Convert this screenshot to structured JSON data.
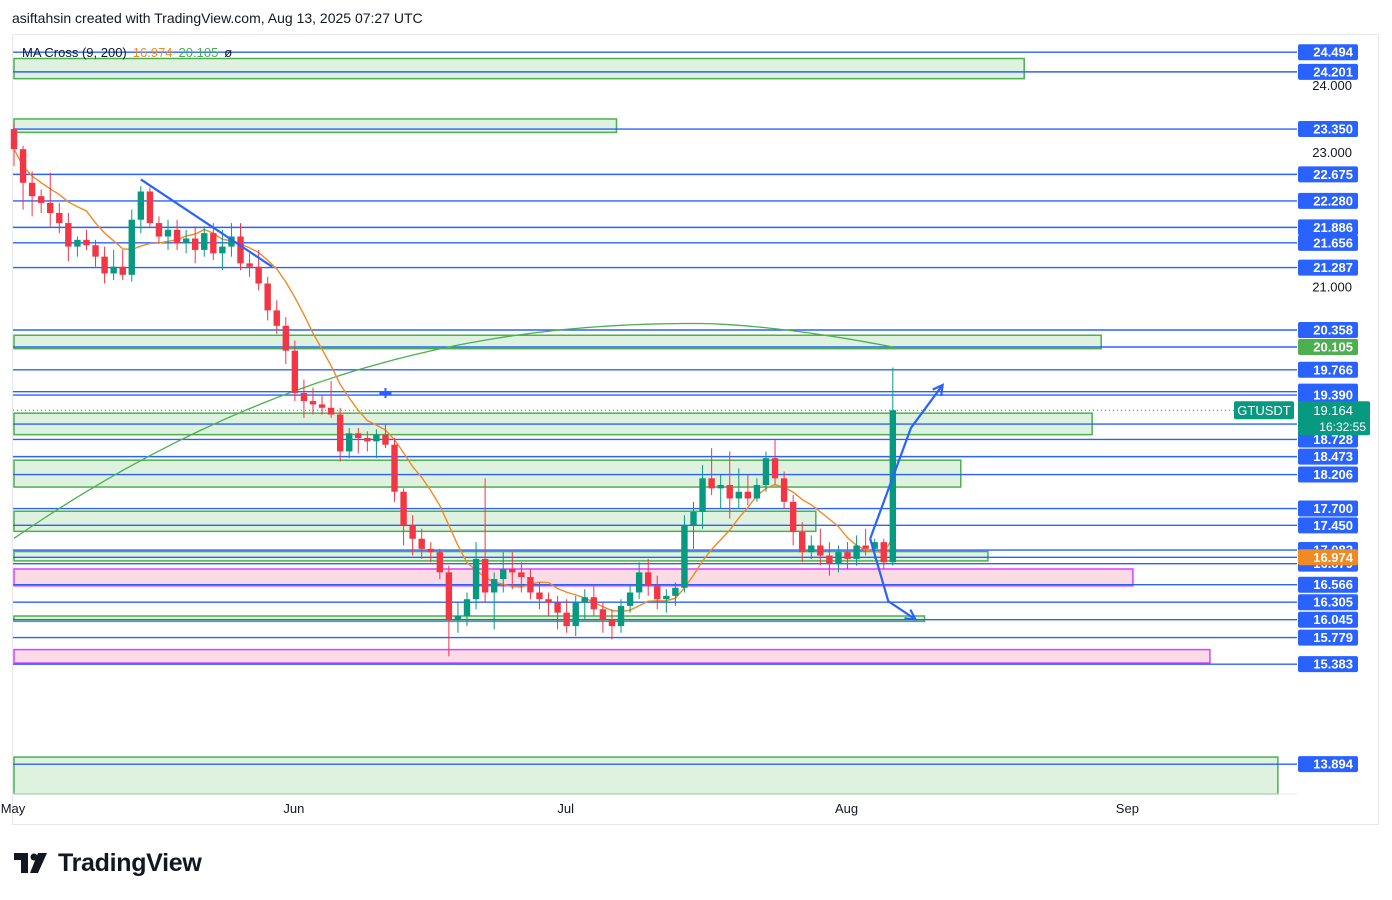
{
  "header": {
    "title": "asiftahsin created with TradingView.com, Aug 13, 2025 07:27 UTC"
  },
  "legend": {
    "label": "MA Cross (9, 200)",
    "ma9": "16.974",
    "ma200": "20.105",
    "symbol": "ø"
  },
  "brand": {
    "name": "TradingView"
  },
  "colors": {
    "up": "#089981",
    "down": "#f23645",
    "level": "#2962ff",
    "zone_green": "#4caf50",
    "zone_pink": "#e040fb",
    "ma9": "#f08a24",
    "ma200": "#4caf50",
    "arrow": "#2962ff"
  },
  "chart_data": {
    "type": "candlestick",
    "symbol": "GTUSDT",
    "last_price": "19.164",
    "countdown": "16:32:55",
    "ylim": [
      13.45,
      24.75
    ],
    "x_ticks": [
      {
        "label": "May",
        "day": 0
      },
      {
        "label": "Jun",
        "day": 31
      },
      {
        "label": "Jul",
        "day": 61
      },
      {
        "label": "Aug",
        "day": 92
      },
      {
        "label": "Sep",
        "day": 123
      }
    ],
    "y_ticks": [
      "24.000",
      "23.000",
      "21.000"
    ],
    "price_levels": [
      24.494,
      24.201,
      23.35,
      22.675,
      22.28,
      21.886,
      21.656,
      21.287,
      20.358,
      20.105,
      19.766,
      19.44,
      19.39,
      18.958,
      18.728,
      18.473,
      18.206,
      17.7,
      17.45,
      17.082,
      16.974,
      16.879,
      16.566,
      16.305,
      16.045,
      15.779,
      15.383,
      13.894
    ],
    "level_labels": [
      {
        "value": 24.494,
        "label": "24.494"
      },
      {
        "value": 24.201,
        "label": "24.201"
      },
      {
        "value": 23.35,
        "label": "23.350"
      },
      {
        "value": 22.675,
        "label": "22.675"
      },
      {
        "value": 22.28,
        "label": "22.280"
      },
      {
        "value": 21.886,
        "label": "21.886"
      },
      {
        "value": 21.656,
        "label": "21.656"
      },
      {
        "value": 21.287,
        "label": "21.287"
      },
      {
        "value": 20.358,
        "label": "20.358"
      },
      {
        "value": 19.766,
        "label": "19.766"
      },
      {
        "value": 19.44,
        "label": "19.440"
      },
      {
        "value": 19.39,
        "label": "19.390"
      },
      {
        "value": 18.958,
        "label": "18.958"
      },
      {
        "value": 18.728,
        "label": "18.728"
      },
      {
        "value": 18.473,
        "label": "18.473"
      },
      {
        "value": 18.206,
        "label": "18.206"
      },
      {
        "value": 17.7,
        "label": "17.700"
      },
      {
        "value": 17.45,
        "label": "17.450"
      },
      {
        "value": 17.082,
        "label": "17.082"
      },
      {
        "value": 16.879,
        "label": "16.879"
      },
      {
        "value": 16.566,
        "label": "16.566"
      },
      {
        "value": 16.305,
        "label": "16.305"
      },
      {
        "value": 16.045,
        "label": "16.045"
      },
      {
        "value": 15.779,
        "label": "15.779"
      },
      {
        "value": 15.383,
        "label": "15.383"
      },
      {
        "value": 13.894,
        "label": "13.894"
      }
    ],
    "badges": [
      {
        "value": 20.105,
        "label": "20.105",
        "color": "#4caf50"
      },
      {
        "value": 16.974,
        "label": "16.974",
        "color": "#f08a24"
      }
    ],
    "zones": [
      {
        "from_day": 0,
        "to_day": 111.5,
        "low": 24.1,
        "high": 24.4,
        "color": "green"
      },
      {
        "from_day": 0,
        "to_day": 66.5,
        "low": 23.3,
        "high": 23.5,
        "color": "green"
      },
      {
        "from_day": 0,
        "to_day": 120.0,
        "low": 20.08,
        "high": 20.28,
        "color": "green"
      },
      {
        "from_day": 0,
        "to_day": 119.0,
        "low": 18.8,
        "high": 19.12,
        "color": "green"
      },
      {
        "from_day": 0,
        "to_day": 104.5,
        "low": 18.02,
        "high": 18.42,
        "color": "green"
      },
      {
        "from_day": 0,
        "to_day": 88.5,
        "low": 17.36,
        "high": 17.66,
        "color": "green"
      },
      {
        "from_day": 0,
        "to_day": 107.5,
        "low": 16.92,
        "high": 17.06,
        "color": "green"
      },
      {
        "from_day": 67.5,
        "to_day": 123.5,
        "low": 16.55,
        "high": 16.8,
        "color": "pink"
      },
      {
        "from_day": 72.5,
        "to_day": 100.5,
        "low": 16.02,
        "high": 16.1,
        "color": "green"
      },
      {
        "from_day": 0,
        "to_day": 132.0,
        "low": 15.4,
        "high": 15.6,
        "color": "pink"
      },
      {
        "from_day": 0,
        "to_day": 139.5,
        "low": 13.45,
        "high": 14.0,
        "color": "green"
      }
    ],
    "drawings": [
      {
        "type": "trendline",
        "points": [
          [
            14,
            22.6
          ],
          [
            28.5,
            21.3
          ]
        ]
      },
      {
        "type": "arrow",
        "points": [
          [
            94.5,
            17.25
          ],
          [
            99,
            18.9
          ],
          [
            102.5,
            19.54
          ]
        ]
      },
      {
        "type": "arrow",
        "points": [
          [
            94.5,
            17.25
          ],
          [
            96.5,
            16.32
          ],
          [
            99.5,
            16.05
          ]
        ]
      }
    ],
    "ohlc": [
      [
        23.35,
        23.42,
        22.8,
        23.05
      ],
      [
        23.05,
        23.1,
        22.15,
        22.55
      ],
      [
        22.55,
        22.72,
        22.05,
        22.35
      ],
      [
        22.35,
        22.45,
        22.1,
        22.25
      ],
      [
        22.25,
        22.7,
        21.9,
        22.1
      ],
      [
        22.1,
        22.25,
        21.8,
        21.95
      ],
      [
        21.95,
        22.1,
        21.38,
        21.6
      ],
      [
        21.6,
        21.75,
        21.45,
        21.7
      ],
      [
        21.7,
        21.85,
        21.55,
        21.62
      ],
      [
        21.62,
        21.7,
        21.3,
        21.45
      ],
      [
        21.45,
        21.6,
        21.05,
        21.2
      ],
      [
        21.2,
        21.55,
        21.1,
        21.3
      ],
      [
        21.3,
        21.55,
        21.1,
        21.18
      ],
      [
        21.18,
        22.15,
        21.08,
        22.0
      ],
      [
        22.0,
        22.5,
        21.8,
        22.42
      ],
      [
        22.42,
        22.48,
        21.9,
        21.95
      ],
      [
        21.95,
        22.05,
        21.65,
        21.75
      ],
      [
        21.75,
        22.0,
        21.55,
        21.85
      ],
      [
        21.85,
        22.0,
        21.55,
        21.65
      ],
      [
        21.65,
        21.85,
        21.5,
        21.72
      ],
      [
        21.72,
        21.9,
        21.35,
        21.55
      ],
      [
        21.55,
        21.9,
        21.45,
        21.8
      ],
      [
        21.8,
        21.95,
        21.4,
        21.5
      ],
      [
        21.5,
        21.85,
        21.25,
        21.6
      ],
      [
        21.6,
        21.95,
        21.45,
        21.75
      ],
      [
        21.75,
        21.95,
        21.25,
        21.35
      ],
      [
        21.35,
        21.5,
        21.15,
        21.3
      ],
      [
        21.3,
        21.55,
        20.95,
        21.05
      ],
      [
        21.05,
        21.15,
        20.5,
        20.65
      ],
      [
        20.65,
        20.8,
        20.3,
        20.42
      ],
      [
        20.42,
        20.55,
        19.85,
        20.05
      ],
      [
        20.05,
        20.2,
        19.3,
        19.42
      ],
      [
        19.42,
        19.62,
        19.05,
        19.3
      ],
      [
        19.3,
        19.5,
        19.1,
        19.25
      ],
      [
        19.25,
        19.38,
        19.1,
        19.2
      ],
      [
        19.2,
        19.6,
        19.05,
        19.1
      ],
      [
        19.1,
        19.2,
        18.4,
        18.55
      ],
      [
        18.55,
        18.9,
        18.45,
        18.82
      ],
      [
        18.82,
        18.9,
        18.52,
        18.75
      ],
      [
        18.75,
        18.85,
        18.55,
        18.7
      ],
      [
        18.7,
        18.88,
        18.45,
        18.8
      ],
      [
        18.8,
        18.95,
        18.6,
        18.65
      ],
      [
        18.65,
        18.75,
        17.8,
        17.95
      ],
      [
        17.95,
        18.0,
        17.15,
        17.45
      ],
      [
        17.45,
        17.6,
        17.0,
        17.25
      ],
      [
        17.25,
        17.4,
        16.95,
        17.1
      ],
      [
        17.1,
        17.2,
        16.9,
        17.05
      ],
      [
        17.05,
        17.1,
        16.65,
        16.75
      ],
      [
        16.75,
        16.85,
        15.5,
        16.05
      ],
      [
        16.05,
        16.3,
        15.85,
        16.1
      ],
      [
        16.1,
        16.45,
        15.95,
        16.35
      ],
      [
        16.35,
        17.2,
        16.2,
        16.95
      ],
      [
        16.95,
        18.15,
        16.3,
        16.45
      ],
      [
        16.45,
        16.75,
        15.9,
        16.65
      ],
      [
        16.65,
        17.05,
        16.45,
        16.8
      ],
      [
        16.8,
        17.05,
        16.5,
        16.75
      ],
      [
        16.75,
        16.9,
        16.45,
        16.68
      ],
      [
        16.68,
        16.8,
        16.35,
        16.45
      ],
      [
        16.45,
        16.6,
        16.2,
        16.35
      ],
      [
        16.35,
        16.45,
        16.1,
        16.3
      ],
      [
        16.3,
        16.4,
        15.9,
        16.15
      ],
      [
        16.15,
        16.35,
        15.85,
        15.95
      ],
      [
        15.95,
        16.4,
        15.8,
        16.3
      ],
      [
        16.3,
        16.5,
        16.05,
        16.38
      ],
      [
        16.38,
        16.55,
        16.1,
        16.2
      ],
      [
        16.2,
        16.3,
        15.85,
        16.05
      ],
      [
        16.05,
        16.2,
        15.75,
        15.95
      ],
      [
        15.95,
        16.35,
        15.85,
        16.25
      ],
      [
        16.25,
        16.55,
        16.15,
        16.45
      ],
      [
        16.45,
        16.9,
        16.35,
        16.75
      ],
      [
        16.75,
        16.95,
        16.4,
        16.55
      ],
      [
        16.55,
        16.7,
        16.2,
        16.35
      ],
      [
        16.35,
        16.5,
        16.15,
        16.4
      ],
      [
        16.4,
        16.6,
        16.25,
        16.52
      ],
      [
        16.52,
        17.6,
        16.45,
        17.45
      ],
      [
        17.45,
        17.8,
        17.1,
        17.65
      ],
      [
        17.65,
        18.35,
        17.4,
        18.15
      ],
      [
        18.15,
        18.6,
        17.9,
        18.0
      ],
      [
        18.0,
        18.2,
        17.7,
        18.05
      ],
      [
        18.05,
        18.55,
        17.55,
        17.85
      ],
      [
        17.85,
        18.3,
        17.7,
        17.95
      ],
      [
        17.95,
        18.2,
        17.75,
        17.85
      ],
      [
        17.85,
        18.15,
        17.8,
        18.05
      ],
      [
        18.05,
        18.55,
        17.95,
        18.45
      ],
      [
        18.45,
        18.72,
        18.05,
        18.15
      ],
      [
        18.15,
        18.25,
        17.7,
        17.8
      ],
      [
        17.8,
        17.9,
        17.15,
        17.35
      ],
      [
        17.35,
        17.5,
        16.9,
        17.05
      ],
      [
        17.05,
        17.3,
        16.95,
        17.15
      ],
      [
        17.15,
        17.4,
        16.85,
        17.0
      ],
      [
        17.0,
        17.2,
        16.7,
        16.88
      ],
      [
        16.88,
        17.15,
        16.75,
        17.05
      ],
      [
        17.05,
        17.2,
        16.8,
        16.95
      ],
      [
        16.95,
        17.3,
        16.85,
        17.15
      ],
      [
        17.15,
        17.4,
        17.0,
        17.1
      ],
      [
        17.1,
        17.25,
        16.95,
        17.2
      ],
      [
        17.2,
        17.25,
        16.8,
        16.9
      ],
      [
        16.9,
        19.8,
        16.85,
        19.164
      ]
    ]
  }
}
